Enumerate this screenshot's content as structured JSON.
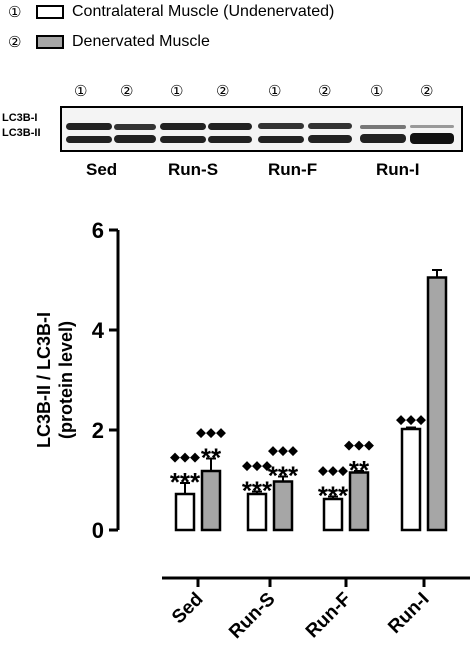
{
  "legend": {
    "items": [
      {
        "marker": "①",
        "text": "Contralateral Muscle (Undenervated)",
        "fill": "#ffffff"
      },
      {
        "marker": "②",
        "text": "Denervated Muscle",
        "fill": "#a6a6a6"
      }
    ]
  },
  "blot": {
    "lane_markers": [
      "①",
      "②",
      "①",
      "②",
      "①",
      "②",
      "①",
      "②"
    ],
    "band_labels": [
      "LC3B-I",
      "LC3B-II"
    ],
    "group_labels": [
      "Sed",
      "Run-S",
      "Run-F",
      "Run-I"
    ]
  },
  "chart_data": {
    "type": "bar",
    "categories": [
      "Sed",
      "Run-S",
      "Run-F",
      "Run-I"
    ],
    "ylabel_line1": "LC3B-II / LC3B-I",
    "ylabel_line2": "(protein level)",
    "ylim": [
      0,
      6
    ],
    "yticks": [
      "0",
      "2",
      "4",
      "6"
    ],
    "grid": false,
    "series": [
      {
        "marker": "①",
        "fill": "#ffffff",
        "values": [
          0.72,
          0.72,
          0.62,
          2.02
        ],
        "errors": [
          0.22,
          0.05,
          0.05,
          0.03
        ],
        "annotations": [
          {
            "diamonds": "◆◆◆",
            "stars": "***"
          },
          {
            "diamonds": "◆◆◆",
            "stars": "***"
          },
          {
            "diamonds": "◆◆◆",
            "stars": "***"
          },
          {
            "diamonds": "◆◆◆",
            "stars": ""
          }
        ]
      },
      {
        "marker": "②",
        "fill": "#a6a6a6",
        "values": [
          1.18,
          0.97,
          1.15,
          5.05
        ],
        "errors": [
          0.25,
          0.1,
          0.03,
          0.15
        ],
        "annotations": [
          {
            "diamonds": "◆◆◆",
            "stars": "**"
          },
          {
            "diamonds": "◆◆◆",
            "stars": "***"
          },
          {
            "diamonds": "◆◆◆",
            "stars": "**"
          },
          {
            "diamonds": "",
            "stars": ""
          }
        ]
      }
    ]
  }
}
